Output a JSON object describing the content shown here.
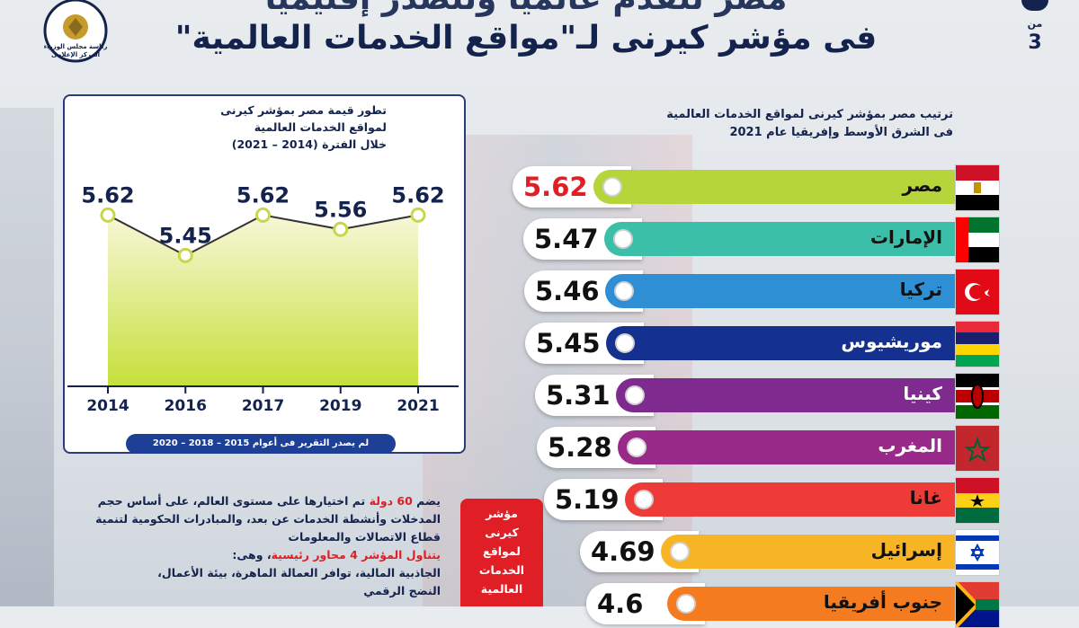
{
  "header": {
    "title_line1": "مصر تتقدم عالمياً وتتصدر إقليمياً",
    "title_line2": "فى مؤشر كيرنى لـ\"مواقع الخدمات العالمية\"",
    "logo_text": [
      "رئاسة مجلس الوزراء",
      "المركز الإعلامى"
    ],
    "page_of": "من",
    "page_total": "3"
  },
  "line_panel": {
    "title": [
      "تطور قيمة مصر بمؤشر كيرنى",
      "لمواقع الخدمات العالمية",
      "خلال الفترة (2014 – 2021)"
    ],
    "footnote": "لم يصدر التقرير فى أعوام 2015 – 2018 – 2020"
  },
  "rank_panel": {
    "title": [
      "ترتيب مصر بمؤشر كيرنى لمواقع الخدمات العالمية",
      "فى الشرق الأوسط وإفريقيا عام 2021"
    ]
  },
  "info": {
    "p1_a": "يضم ",
    "p1_red": "60 دولة",
    "p1_b": " تم اختيارها على مستوى العالم، على أساس حجم المدخلات وأنشطة الخدمات عن بعد، والمبادرات الحكومية لتنمية قطاع الاتصالات والمعلومات",
    "p2_red": "يتناول المؤشر 4 محاور رئيسية",
    "p2_b": "، وهى:",
    "p3": "الجاذبية المالية، توافر العمالة الماهرة، بيئة الأعمال،",
    "p4": "النضج الرقمي"
  },
  "red_box": {
    "text": [
      "مؤشر",
      "كيرنى",
      "لمواقع",
      "الخدمات",
      "العالمية"
    ]
  },
  "colors": {
    "navy": "#13234d",
    "red": "#e01e26",
    "line_fill_top": "#f6f7d8",
    "line_fill_bottom": "#c6e03a"
  },
  "chart_data": [
    {
      "type": "line",
      "title": "تطور قيمة مصر بمؤشر كيرنى لمواقع الخدمات العالمية خلال الفترة (2014 – 2021)",
      "categories": [
        "2014",
        "2016",
        "2017",
        "2019",
        "2021"
      ],
      "series": [
        {
          "values": [
            5.62,
            5.45,
            5.62,
            5.56,
            5.62
          ]
        }
      ],
      "ylim": [
        4.9,
        5.75
      ],
      "grid": false,
      "data_labels": [
        "5.62",
        "5.45",
        "5.62",
        "5.56",
        "5.62"
      ]
    },
    {
      "type": "bar",
      "orientation": "horizontal",
      "title": "ترتيب مصر بمؤشر كيرنى لمواقع الخدمات العالمية فى الشرق الأوسط وإفريقيا عام 2021",
      "categories": [
        "مصر",
        "الإمارات",
        "تركيا",
        "موريشيوس",
        "كينيا",
        "المغرب",
        "غانا",
        "إسرائيل",
        "جنوب أفريقيا"
      ],
      "values": [
        5.62,
        5.47,
        5.46,
        5.45,
        5.31,
        5.28,
        5.19,
        4.69,
        4.6
      ],
      "data_labels": [
        "5.62",
        "5.47",
        "5.46",
        "5.45",
        "5.31",
        "5.28",
        "5.19",
        "4.69",
        "4.6"
      ],
      "bar_colors": [
        "#b5d53a",
        "#3bbfa9",
        "#2f8fd4",
        "#15318f",
        "#7e2a8e",
        "#9a2a8a",
        "#ee3b38",
        "#f7b526",
        "#f47b20"
      ],
      "flags": [
        "egypt",
        "uae",
        "turkey",
        "mauritius",
        "kenya",
        "morocco",
        "ghana",
        "israel",
        "south-africa"
      ]
    }
  ]
}
